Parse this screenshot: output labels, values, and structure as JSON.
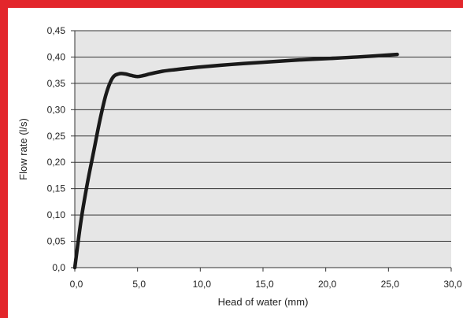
{
  "colors": {
    "frame": "#e3262b",
    "plot_background": "#e6e6e6",
    "gridline": "#333333",
    "series": "#1a1a1a"
  },
  "chart_data": {
    "type": "line",
    "title": "",
    "xlabel": "Head of water (mm)",
    "ylabel": "Flow rate (l/s)",
    "xlim": [
      0,
      30
    ],
    "ylim": [
      0,
      0.45
    ],
    "x_ticks": [
      0,
      5,
      10,
      15,
      20,
      25,
      30
    ],
    "x_tick_labels": [
      "0,0",
      "5,0",
      "10,0",
      "15,0",
      "20,0",
      "25,0",
      "30,0"
    ],
    "y_ticks": [
      0,
      0.05,
      0.1,
      0.15,
      0.2,
      0.25,
      0.3,
      0.35,
      0.4,
      0.45
    ],
    "y_tick_labels": [
      "0,0",
      "0,05",
      "0,10",
      "0,15",
      "0,20",
      "0,25",
      "0,30",
      "0,35",
      "0,40",
      "0,45"
    ],
    "grid": "horizontal",
    "legend": "none",
    "series": [
      {
        "x": [
          0,
          0.5,
          1.0,
          1.5,
          2.0,
          2.5,
          3.0,
          3.5,
          4.0,
          4.5,
          5.0,
          5.5,
          6.0,
          7.0,
          8.0,
          10.0,
          12.5,
          15.0,
          17.5,
          20.0,
          22.5,
          25.7
        ],
        "y": [
          0.0,
          0.09,
          0.16,
          0.22,
          0.28,
          0.33,
          0.36,
          0.368,
          0.368,
          0.365,
          0.363,
          0.365,
          0.368,
          0.373,
          0.376,
          0.381,
          0.386,
          0.39,
          0.394,
          0.397,
          0.4,
          0.405
        ]
      }
    ]
  }
}
